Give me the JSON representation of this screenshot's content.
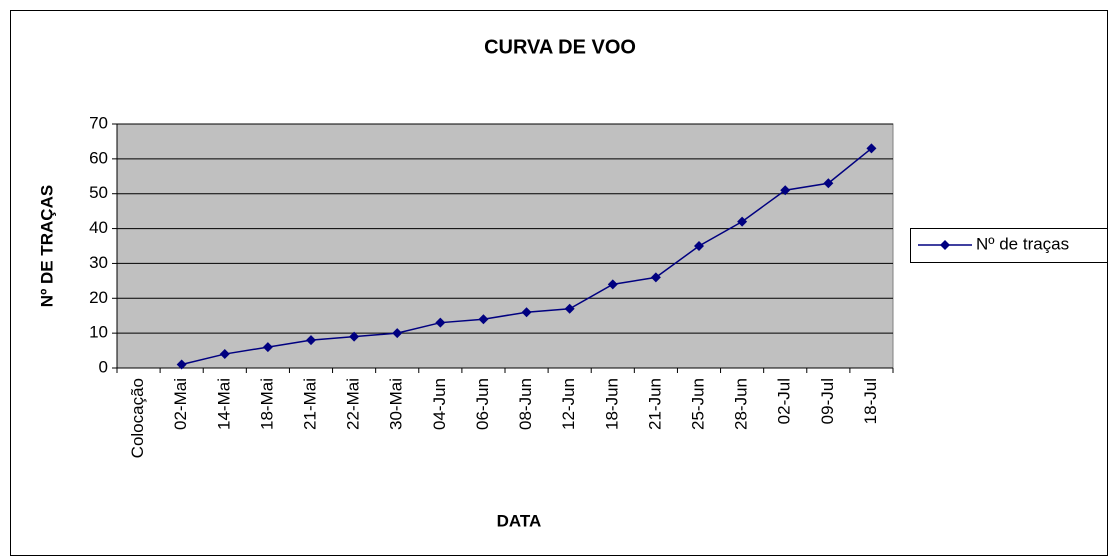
{
  "chart_data": {
    "type": "line",
    "title": "CURVA DE VOO",
    "x_label": "DATA",
    "y_label": "Nº DE TRAÇAS",
    "categories": [
      "Colocação",
      "02-Mai",
      "14-Mai",
      "18-Mai",
      "21-Mai",
      "22-Mai",
      "30-Mai",
      "04-Jun",
      "06-Jun",
      "08-Jun",
      "12-Jun",
      "18-Jun",
      "21-Jun",
      "25-Jun",
      "28-Jun",
      "02-Jul",
      "09-Jul",
      "18-Jul"
    ],
    "series": [
      {
        "name": "Nº de traças",
        "color": "#000080",
        "marker": "diamond",
        "values": [
          null,
          1,
          4,
          6,
          8,
          9,
          10,
          13,
          14,
          16,
          17,
          24,
          26,
          35,
          42,
          51,
          53,
          63
        ]
      }
    ],
    "ylim": [
      0,
      70
    ],
    "yticks": [
      0,
      10,
      20,
      30,
      40,
      50,
      60,
      70
    ],
    "grid": true,
    "legend": "right"
  }
}
